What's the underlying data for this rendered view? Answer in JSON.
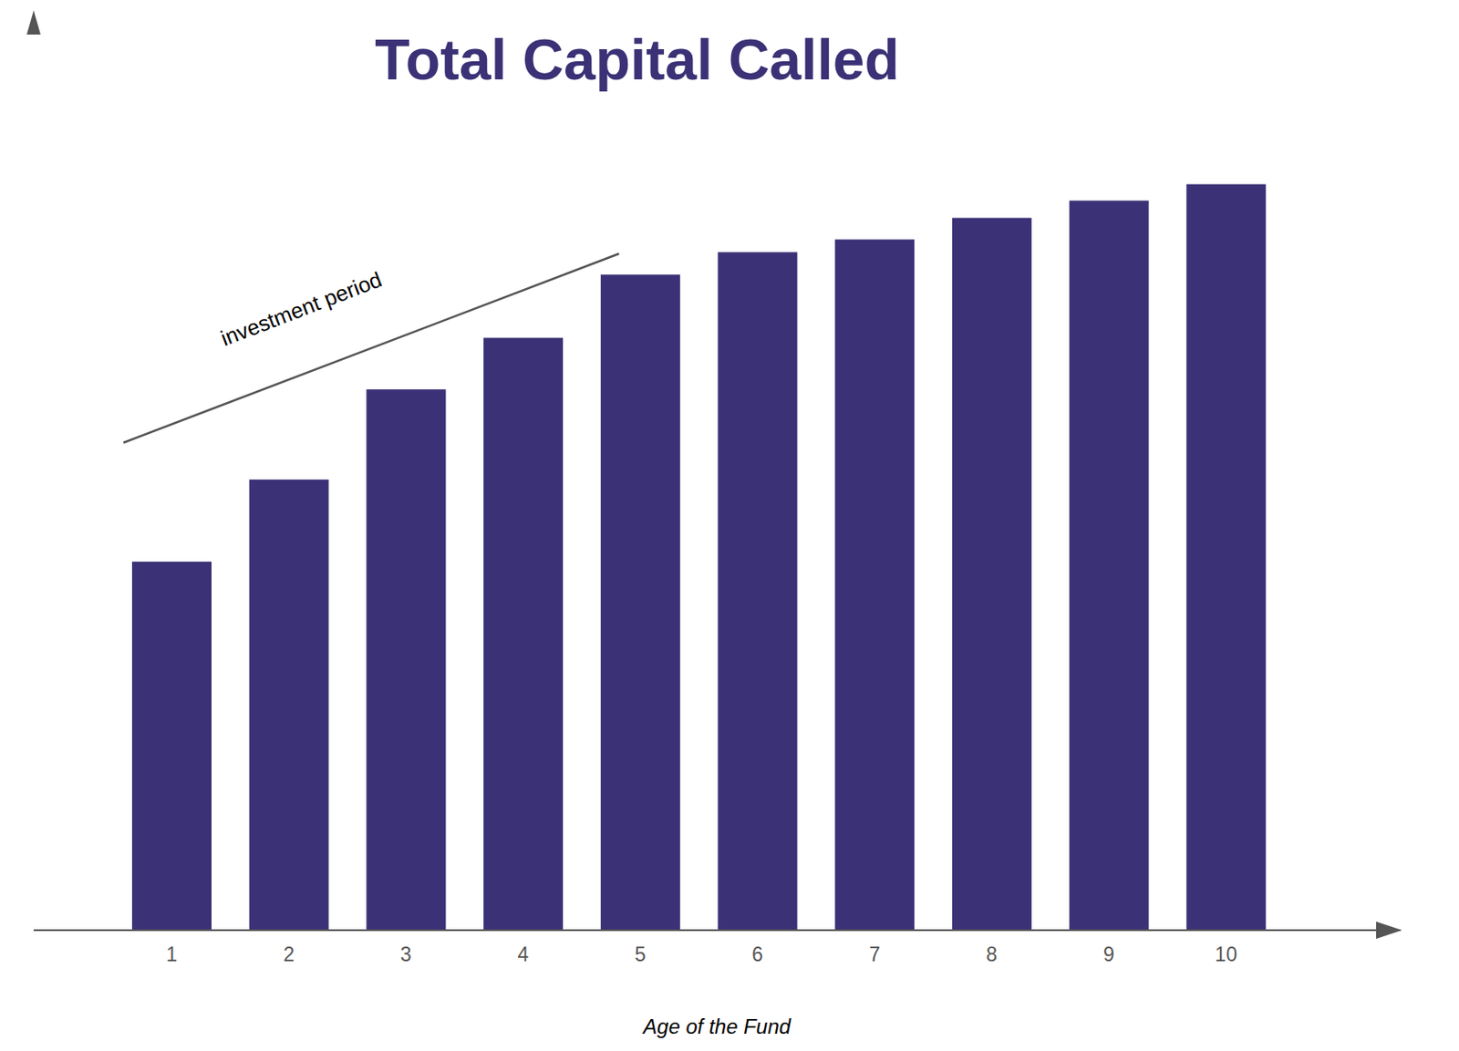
{
  "chart_data": {
    "type": "bar",
    "title": "Total Capital Called",
    "x_label": "Age of the Fund",
    "annotation": "investment period",
    "categories": [
      "1",
      "2",
      "3",
      "4",
      "5",
      "6",
      "7",
      "8",
      "9",
      "10"
    ],
    "values": [
      49.4,
      60.4,
      72.5,
      79.4,
      87.9,
      90.9,
      92.6,
      95.5,
      97.8,
      100
    ],
    "color": "#3b3176",
    "ylim": [
      0,
      121
    ],
    "tick_labels": "x",
    "grid": false
  }
}
